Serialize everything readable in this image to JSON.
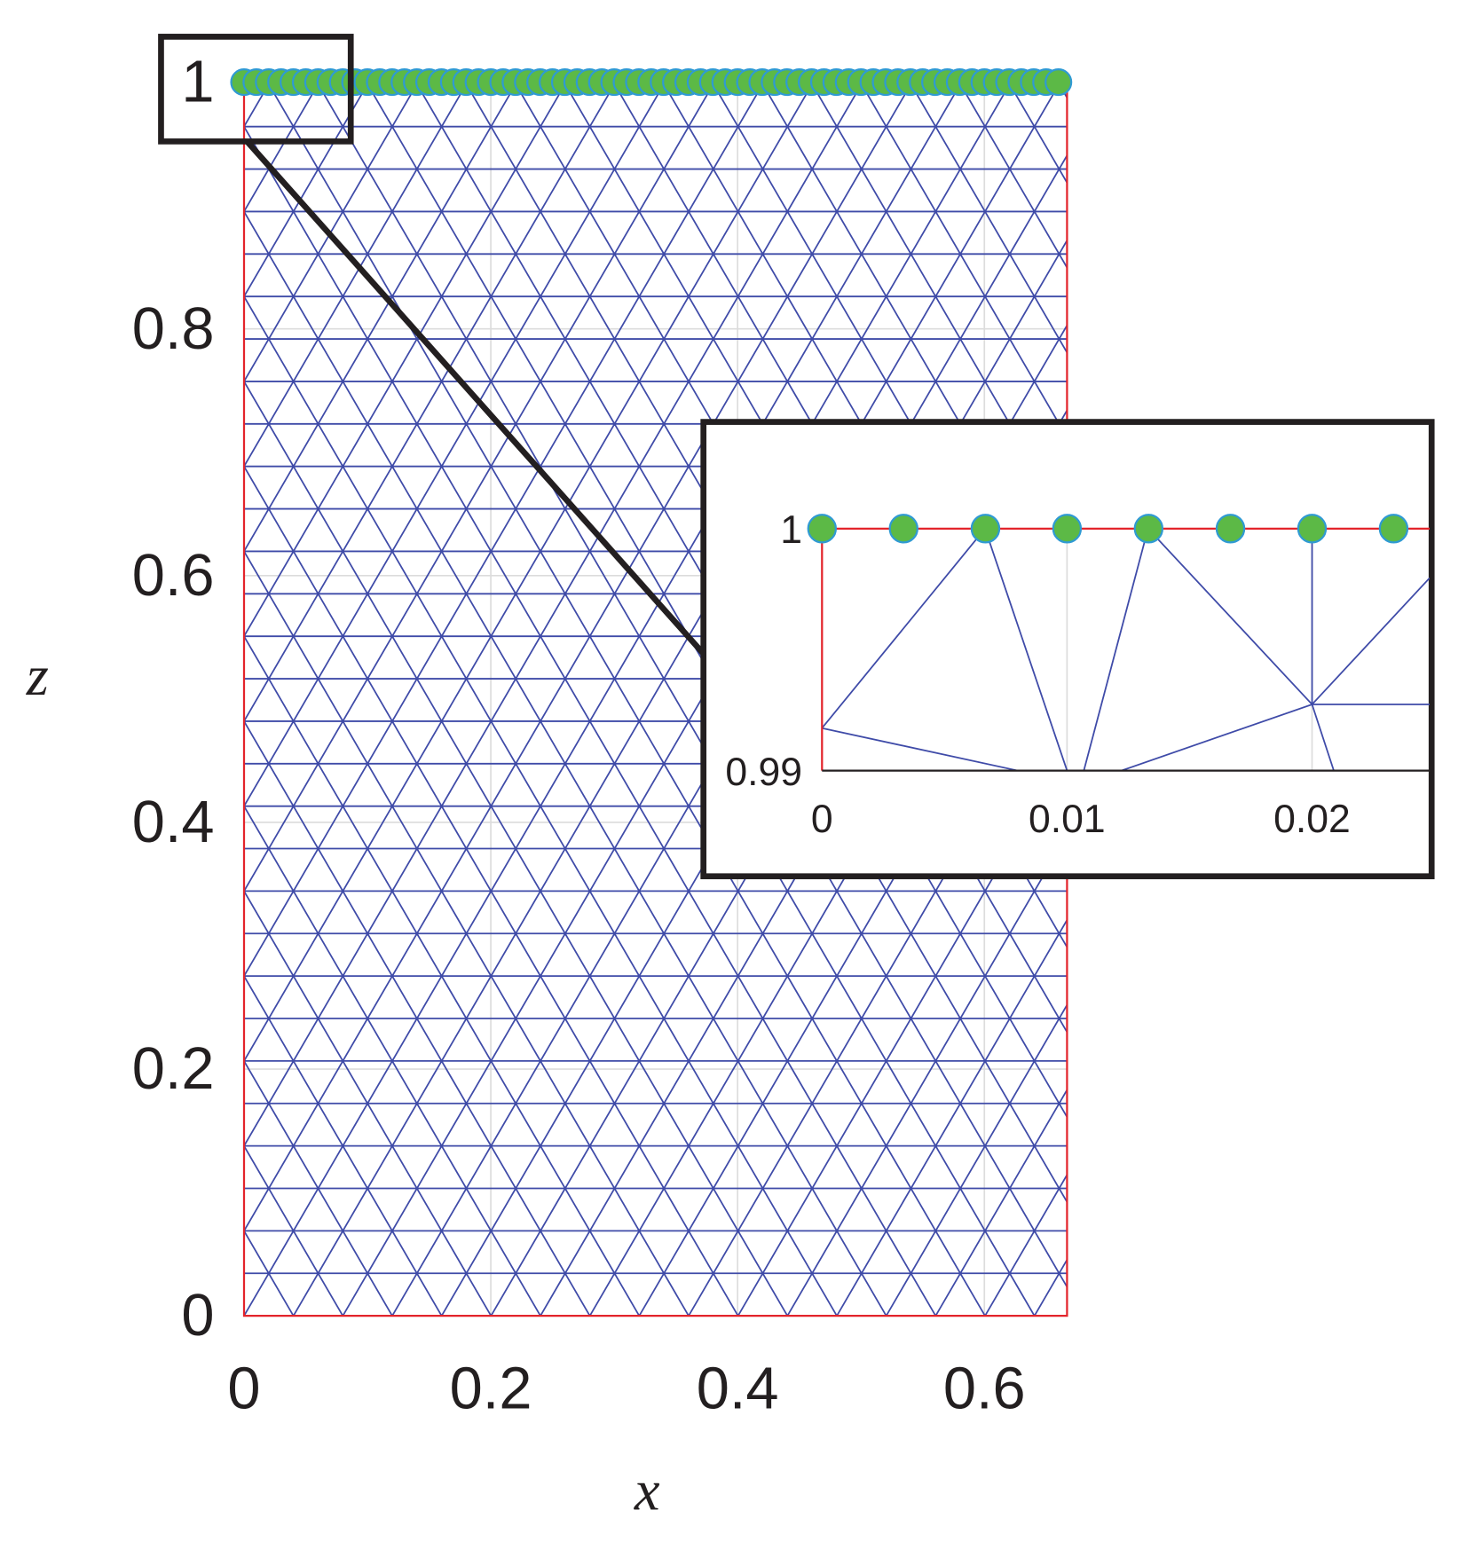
{
  "chart_data": [
    {
      "type": "scatter",
      "xlabel": "x",
      "ylabel": "z",
      "xlim": [
        0,
        0.667
      ],
      "ylim": [
        0,
        1
      ],
      "xticks": [
        0,
        0.2,
        0.4,
        0.6
      ],
      "yticks": [
        0,
        0.2,
        0.4,
        0.6,
        0.8,
        1
      ],
      "grid": true,
      "x": [
        0,
        0.01,
        0.02,
        0.03,
        0.04,
        0.05,
        0.06,
        0.07,
        0.08,
        0.09,
        0.1,
        0.11,
        0.12,
        0.13,
        0.14,
        0.15,
        0.16,
        0.17,
        0.18,
        0.19,
        0.2,
        0.21,
        0.22,
        0.23,
        0.24,
        0.25,
        0.26,
        0.27,
        0.28,
        0.29,
        0.3,
        0.31,
        0.32,
        0.33,
        0.34,
        0.35,
        0.36,
        0.37,
        0.38,
        0.39,
        0.4,
        0.41,
        0.42,
        0.43,
        0.44,
        0.45,
        0.46,
        0.47,
        0.48,
        0.49,
        0.5,
        0.51,
        0.52,
        0.53,
        0.54,
        0.55,
        0.56,
        0.57,
        0.58,
        0.59,
        0.6,
        0.61,
        0.62,
        0.63,
        0.64,
        0.65,
        0.66
      ],
      "series": [
        {
          "color": "#5cb946",
          "values": [
            1,
            1,
            1,
            1,
            1,
            1,
            1,
            1,
            1,
            1,
            1,
            1,
            1,
            1,
            1,
            1,
            1,
            1,
            1,
            1,
            1,
            1,
            1,
            1,
            1,
            1,
            1,
            1,
            1,
            1,
            1,
            1,
            1,
            1,
            1,
            1,
            1,
            1,
            1,
            1,
            1,
            1,
            1,
            1,
            1,
            1,
            1,
            1,
            1,
            1,
            1,
            1,
            1,
            1,
            1,
            1,
            1,
            1,
            1,
            1,
            1,
            1,
            1,
            1,
            1,
            1,
            1
          ]
        }
      ]
    },
    {
      "type": "scatter",
      "xlim": [
        0,
        0.0248
      ],
      "ylim": [
        0.99,
        1
      ],
      "xticks": [
        0,
        0.01,
        0.02
      ],
      "yticks": [
        0.99,
        1
      ],
      "grid": true,
      "x": [
        0,
        0.00333,
        0.00667,
        0.01,
        0.01333,
        0.01667,
        0.02,
        0.02333
      ],
      "series": [
        {
          "color": "#5cb946",
          "values": [
            1,
            1,
            1,
            1,
            1,
            1,
            1,
            1
          ]
        }
      ]
    }
  ]
}
